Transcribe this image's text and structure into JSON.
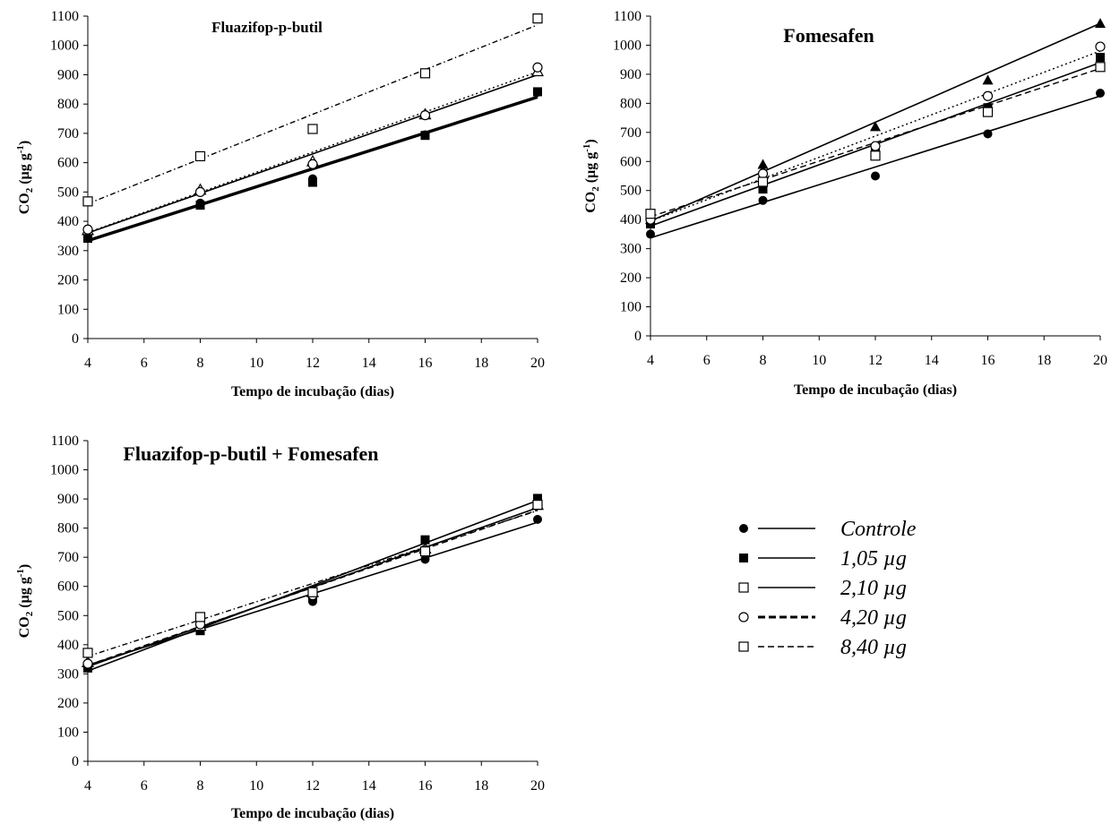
{
  "chart_data": [
    {
      "type": "scatter",
      "title": "Fluazifop-p-butil",
      "xlabel": "Tempo de incubação (dias)",
      "ylabel": "CO2 (µg g-1)",
      "xlim": [
        4,
        20
      ],
      "ylim": [
        0,
        1100
      ],
      "xticks": [
        4,
        6,
        8,
        10,
        12,
        14,
        16,
        18,
        20
      ],
      "yticks": [
        0,
        100,
        200,
        300,
        400,
        500,
        600,
        700,
        800,
        900,
        1000,
        1100
      ],
      "x": [
        4,
        8,
        12,
        16,
        20
      ],
      "series": [
        {
          "name": "Controle",
          "marker": "circle-filled",
          "line": "solid-thick",
          "values": [
            345,
            462,
            545,
            695,
            840
          ],
          "fit": [
            335,
            825
          ]
        },
        {
          "name": "1,05 µg",
          "marker": "square-filled",
          "line": "solid-thick",
          "values": [
            342,
            455,
            533,
            693,
            842
          ],
          "fit": [
            333,
            823
          ]
        },
        {
          "name": "2,10 µg",
          "marker": "triangle-open",
          "line": "solid",
          "values": [
            370,
            508,
            605,
            765,
            912
          ],
          "fit": [
            360,
            900
          ]
        },
        {
          "name": "4,20 µg",
          "marker": "circle-open",
          "line": "dotted",
          "values": [
            372,
            500,
            595,
            762,
            925
          ],
          "fit": [
            362,
            910
          ]
        },
        {
          "name": "8,40 µg",
          "marker": "square-open",
          "line": "dash-dot",
          "values": [
            468,
            622,
            715,
            905,
            1092
          ],
          "fit": [
            460,
            1070
          ]
        }
      ]
    },
    {
      "type": "scatter",
      "title": "Fomesafen",
      "xlabel": "Tempo de incubação (dias)",
      "ylabel": "CO2 (µg g-1)",
      "xlim": [
        4,
        20
      ],
      "ylim": [
        0,
        1100
      ],
      "xticks": [
        4,
        6,
        8,
        10,
        12,
        14,
        16,
        18,
        20
      ],
      "yticks": [
        0,
        100,
        200,
        300,
        400,
        500,
        600,
        700,
        800,
        900,
        1000,
        1100
      ],
      "x": [
        4,
        8,
        12,
        16,
        20
      ],
      "series": [
        {
          "name": "Controle",
          "marker": "circle-filled",
          "line": "solid",
          "values": [
            350,
            466,
            550,
            695,
            835
          ],
          "fit": [
            337,
            825
          ]
        },
        {
          "name": "1,05 µg",
          "marker": "square-filled",
          "line": "solid",
          "values": [
            385,
            505,
            640,
            785,
            958
          ],
          "fit": [
            378,
            940
          ]
        },
        {
          "name": "2,10 µg",
          "marker": "triangle-filled",
          "line": "solid",
          "values": [
            400,
            590,
            720,
            880,
            1075
          ],
          "fit": [
            395,
            1075
          ]
        },
        {
          "name": "4,20 µg",
          "marker": "circle-open",
          "line": "dotted",
          "values": [
            400,
            558,
            653,
            825,
            995
          ],
          "fit": [
            395,
            980
          ]
        },
        {
          "name": "8,40 µg",
          "marker": "square-open",
          "line": "dashed",
          "values": [
            420,
            530,
            620,
            770,
            925
          ],
          "fit": [
            410,
            920
          ]
        }
      ]
    },
    {
      "type": "scatter",
      "title": "Fluazifop-p-butil + Fomesafen",
      "xlabel": "Tempo de incubação (dias)",
      "ylabel": "CO2 (µg g-1)",
      "xlim": [
        4,
        20
      ],
      "ylim": [
        0,
        1100
      ],
      "xticks": [
        4,
        6,
        8,
        10,
        12,
        14,
        16,
        18,
        20
      ],
      "yticks": [
        0,
        100,
        200,
        300,
        400,
        500,
        600,
        700,
        800,
        900,
        1000,
        1100
      ],
      "x": [
        4,
        8,
        12,
        16,
        20
      ],
      "series": [
        {
          "name": "Controle",
          "marker": "circle-filled",
          "line": "solid",
          "values": [
            330,
            450,
            548,
            693,
            830
          ],
          "fit": [
            330,
            820
          ]
        },
        {
          "name": "1,05 µg",
          "marker": "square-filled",
          "line": "solid",
          "values": [
            320,
            448,
            565,
            760,
            902
          ],
          "fit": [
            310,
            895
          ]
        },
        {
          "name": "2,10 µg",
          "marker": "triangle-open",
          "line": "solid",
          "values": [
            340,
            465,
            580,
            730,
            880
          ],
          "fit": [
            325,
            870
          ]
        },
        {
          "name": "4,20 µg",
          "marker": "circle-open",
          "line": "dashed",
          "values": [
            335,
            470,
            570,
            725,
            880
          ],
          "fit": [
            330,
            862
          ]
        },
        {
          "name": "8,40 µg",
          "marker": "square-open",
          "line": "dash-dot",
          "values": [
            372,
            495,
            580,
            720,
            880
          ],
          "fit": [
            360,
            860
          ]
        }
      ]
    }
  ],
  "legend": {
    "placement": "right of bottom panel",
    "entries": [
      {
        "label": "Controle",
        "marker": "circle-filled",
        "line": "solid"
      },
      {
        "label": "1,05 µg",
        "marker": "square-filled",
        "line": "solid"
      },
      {
        "label": "2,10 µg",
        "marker": "square-open",
        "line": "solid"
      },
      {
        "label": "4,20 µg",
        "marker": "circle-open",
        "line": "dashed-bold"
      },
      {
        "label": "8,40 µg",
        "marker": "square-open",
        "line": "dashed"
      }
    ]
  }
}
